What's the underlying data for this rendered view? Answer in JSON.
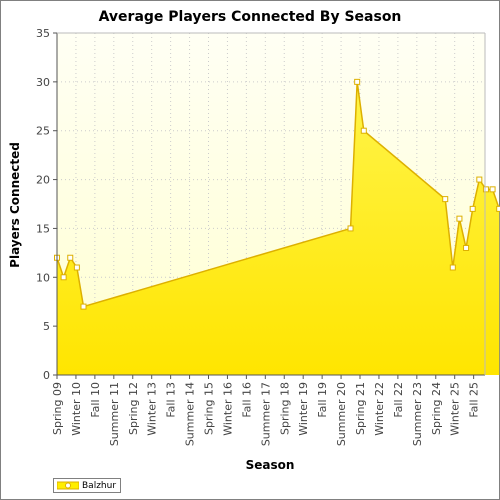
{
  "chart_data": {
    "type": "area",
    "title": "Average Players Connected By Season",
    "xlabel": "Season",
    "ylabel": "Players Connected",
    "ylim": [
      0,
      35
    ],
    "yticks": [
      0,
      5,
      10,
      15,
      20,
      25,
      30,
      35
    ],
    "x_tick_labels": [
      "Spring 09",
      "Winter 10",
      "Fall 10",
      "Summer 11",
      "Spring 12",
      "Winter 13",
      "Fall 13",
      "Summer 14",
      "Spring 15",
      "Winter 16",
      "Fall 16",
      "Summer 17",
      "Spring 18",
      "Winter 19",
      "Fall 19",
      "Summer 20",
      "Spring 21",
      "Winter 22",
      "Fall 22",
      "Summer 23",
      "Spring 24",
      "Winter 25",
      "Fall 25"
    ],
    "series": [
      {
        "name": "Balzhur",
        "color": "#ffee00",
        "line_color": "#ddb000",
        "points": [
          {
            "x": 0.0,
            "y": 12
          },
          {
            "x": 0.35,
            "y": 10
          },
          {
            "x": 0.7,
            "y": 12
          },
          {
            "x": 1.05,
            "y": 11
          },
          {
            "x": 1.4,
            "y": 7
          },
          {
            "x": 15.5,
            "y": 15
          },
          {
            "x": 15.85,
            "y": 30
          },
          {
            "x": 16.2,
            "y": 25
          },
          {
            "x": 20.5,
            "y": 18
          },
          {
            "x": 20.9,
            "y": 11
          },
          {
            "x": 21.25,
            "y": 16
          },
          {
            "x": 21.6,
            "y": 13
          },
          {
            "x": 21.95,
            "y": 17
          },
          {
            "x": 22.3,
            "y": 20
          },
          {
            "x": 22.65,
            "y": 19
          },
          {
            "x": 23.0,
            "y": 19
          },
          {
            "x": 23.35,
            "y": 17
          }
        ]
      }
    ],
    "grid": true,
    "legend": "bottom-left"
  }
}
